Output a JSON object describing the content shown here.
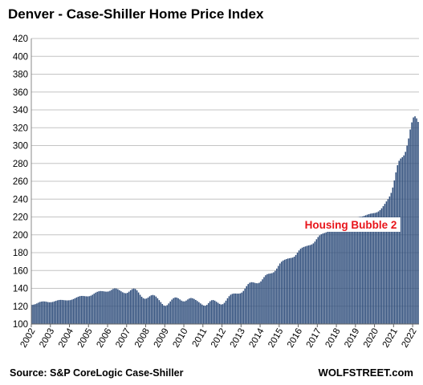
{
  "chart_data": {
    "type": "bar",
    "title": "Denver  - Case-Shiller Home Price Index",
    "xlabel": "",
    "ylabel": "",
    "ylim": [
      100,
      420
    ],
    "y_ticks": [
      100,
      120,
      140,
      160,
      180,
      200,
      220,
      240,
      260,
      280,
      300,
      320,
      340,
      360,
      380,
      400,
      420
    ],
    "x_ticks": [
      "2002",
      "2003",
      "2004",
      "2005",
      "2006",
      "2007",
      "2008",
      "2009",
      "2010",
      "2011",
      "2012",
      "2013",
      "2014",
      "2015",
      "2016",
      "2017",
      "2018",
      "2019",
      "2020",
      "2021",
      "2022"
    ],
    "grid": true,
    "bar_color": "#2e4d7b",
    "frequency": "monthly",
    "start": "2002-01",
    "values": [
      121.5,
      121.8,
      122.3,
      123.1,
      124.0,
      124.8,
      125.2,
      125.4,
      125.3,
      125.0,
      124.6,
      124.4,
      124.5,
      124.8,
      125.4,
      126.0,
      126.6,
      127.0,
      127.1,
      127.0,
      126.8,
      126.6,
      126.5,
      126.6,
      126.8,
      127.3,
      128.0,
      128.9,
      129.8,
      130.6,
      131.2,
      131.5,
      131.5,
      131.3,
      131.1,
      131.0,
      131.2,
      131.8,
      132.8,
      134.0,
      135.2,
      136.1,
      136.7,
      137.0,
      136.9,
      136.7,
      136.4,
      136.3,
      136.5,
      137.2,
      138.3,
      139.4,
      140.0,
      139.8,
      139.0,
      137.9,
      136.7,
      135.6,
      134.8,
      134.5,
      135.0,
      136.3,
      137.9,
      139.2,
      139.8,
      139.3,
      137.7,
      135.4,
      132.8,
      130.6,
      129.0,
      128.3,
      128.6,
      129.7,
      131.1,
      132.2,
      132.6,
      132.1,
      130.8,
      128.9,
      126.8,
      124.6,
      122.5,
      120.8,
      120.3,
      121.2,
      123.1,
      125.3,
      127.4,
      129.0,
      129.8,
      129.7,
      128.9,
      127.6,
      126.3,
      125.5,
      125.4,
      126.3,
      127.6,
      128.7,
      129.2,
      128.9,
      128.1,
      127.0,
      125.8,
      124.5,
      123.1,
      121.8,
      120.8,
      120.5,
      121.5,
      123.5,
      125.5,
      126.7,
      126.9,
      126.2,
      125.0,
      123.8,
      122.6,
      121.9,
      122.3,
      123.8,
      126.2,
      128.9,
      131.2,
      132.9,
      133.8,
      134.2,
      134.2,
      134.1,
      134.1,
      134.4,
      135.3,
      137.1,
      139.7,
      142.5,
      144.8,
      146.3,
      146.9,
      146.8,
      146.3,
      145.8,
      145.7,
      146.3,
      147.8,
      150.1,
      152.6,
      154.7,
      155.9,
      156.4,
      156.7,
      157.1,
      158.0,
      159.7,
      162.2,
      165.2,
      167.9,
      169.9,
      171.2,
      172.1,
      172.8,
      173.4,
      173.8,
      174.1,
      174.5,
      175.5,
      177.4,
      180.0,
      182.5,
      184.4,
      185.6,
      186.4,
      187.0,
      187.6,
      188.1,
      188.5,
      189.2,
      190.4,
      192.4,
      195.0,
      197.5,
      199.4,
      200.6,
      201.4,
      202.0,
      202.7,
      203.4,
      204.0,
      204.6,
      205.4,
      206.6,
      208.2,
      209.7,
      210.6,
      210.9,
      211.0,
      211.1,
      211.4,
      211.9,
      212.5,
      213.2,
      214.2,
      215.6,
      217.3,
      218.7,
      219.6,
      220.0,
      220.2,
      220.6,
      221.2,
      221.9,
      222.6,
      223.2,
      223.7,
      224.0,
      224.3,
      224.6,
      225.2,
      226.2,
      227.7,
      229.7,
      232.1,
      234.7,
      237.4,
      240.0,
      243.0,
      247.0,
      253.0,
      261.0,
      270.0,
      278.0,
      283.0,
      285.5,
      287.0,
      289.0,
      293.0,
      300.0,
      308.0,
      318.0,
      326.0,
      331.5,
      332.8,
      330.5,
      326.5
    ],
    "annotation": "Housing Bubble 2",
    "annotation_color": "#e8151b"
  },
  "footer": {
    "source": "Source: S&P CoreLogic Case-Shiller",
    "brand": "WOLFSTREET.com"
  }
}
